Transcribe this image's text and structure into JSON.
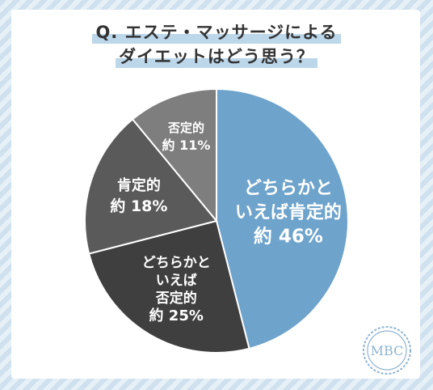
{
  "title": {
    "line1": "Q. エステ・マッサージによる",
    "line2": "ダイエットはどう思う？"
  },
  "chart_data": {
    "type": "pie",
    "slices": [
      {
        "lines": [
          "どちらかと",
          "いえば肯定的",
          "約 46%"
        ],
        "value": 46,
        "color": "#6ea3cc"
      },
      {
        "lines": [
          "どちらかと",
          "いえば",
          "否定的",
          "約 25%"
        ],
        "value": 25,
        "color": "#3f3f3f"
      },
      {
        "lines": [
          "肯定的",
          "約 18%"
        ],
        "value": 18,
        "color": "#5a5a5a"
      },
      {
        "lines": [
          "否定的",
          "約 11%"
        ],
        "value": 11,
        "color": "#7e7e7e"
      }
    ]
  },
  "logo": {
    "text": "MBC",
    "color": "#8fb4d3"
  }
}
